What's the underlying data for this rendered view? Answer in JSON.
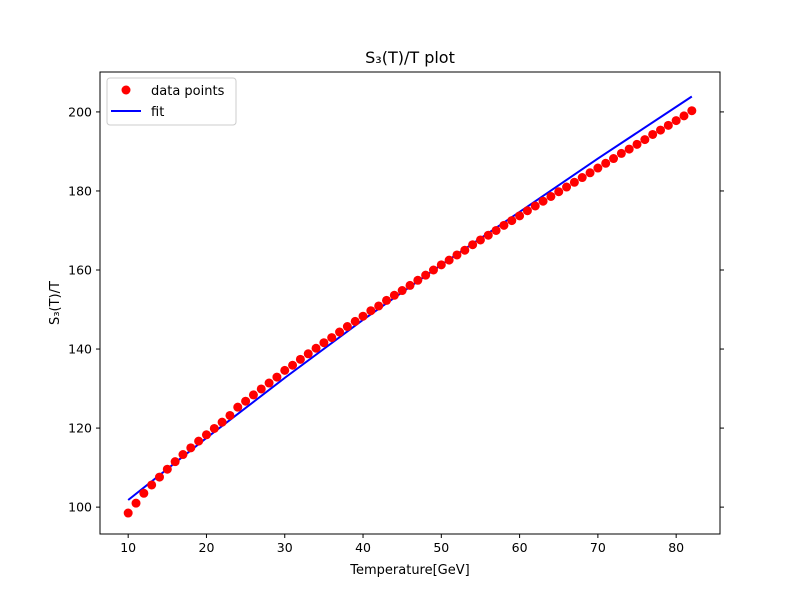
{
  "chart_data": {
    "type": "scatter",
    "title": "S₃(T)/T plot",
    "xlabel": "Temperature[GeV]",
    "ylabel": "S₃(T)/T",
    "xlim": [
      6.4,
      85.6
    ],
    "ylim": [
      93.2,
      210.1
    ],
    "xticks": [
      10,
      20,
      30,
      40,
      50,
      60,
      70,
      80
    ],
    "yticks": [
      100,
      120,
      140,
      160,
      180,
      200
    ],
    "legend_position": "top-left",
    "grid": false,
    "series": [
      {
        "name": "data points",
        "kind": "scatter",
        "color": "#ff0000",
        "x": [
          10,
          11,
          12,
          13,
          14,
          15,
          16,
          17,
          18,
          19,
          20,
          21,
          22,
          23,
          24,
          25,
          26,
          27,
          28,
          29,
          30,
          31,
          32,
          33,
          34,
          35,
          36,
          37,
          38,
          39,
          40,
          41,
          42,
          43,
          44,
          45,
          46,
          47,
          48,
          49,
          50,
          51,
          52,
          53,
          54,
          55,
          56,
          57,
          58,
          59,
          60,
          61,
          62,
          63,
          64,
          65,
          66,
          67,
          68,
          69,
          70,
          71,
          72,
          73,
          74,
          75,
          76,
          77,
          78,
          79,
          80,
          81,
          82
        ],
        "y": [
          98.5,
          101.0,
          103.5,
          105.6,
          107.6,
          109.6,
          111.5,
          113.3,
          115.0,
          116.7,
          118.3,
          119.9,
          121.5,
          123.2,
          125.3,
          126.8,
          128.4,
          129.9,
          131.4,
          132.9,
          134.6,
          135.9,
          137.4,
          138.8,
          140.2,
          141.6,
          142.9,
          144.3,
          145.7,
          147.0,
          148.3,
          149.7,
          150.9,
          152.3,
          153.6,
          154.8,
          156.1,
          157.4,
          158.7,
          160.0,
          161.3,
          162.5,
          163.8,
          165.0,
          166.4,
          167.6,
          168.8,
          170.0,
          171.3,
          172.5,
          173.7,
          175.0,
          176.2,
          177.4,
          178.6,
          179.8,
          181.0,
          182.2,
          183.4,
          184.6,
          185.8,
          187.0,
          188.2,
          189.5,
          190.6,
          191.8,
          193.0,
          194.3,
          195.4,
          196.6,
          197.8,
          199.0,
          200.3
        ]
      },
      {
        "name": "fit",
        "kind": "line",
        "color": "#0000ff",
        "x": [
          10,
          20,
          30,
          40,
          50,
          60,
          70,
          82
        ],
        "y": [
          101.8,
          117.5,
          132.7,
          147.4,
          161.3,
          174.7,
          188.2,
          203.9
        ]
      }
    ]
  }
}
